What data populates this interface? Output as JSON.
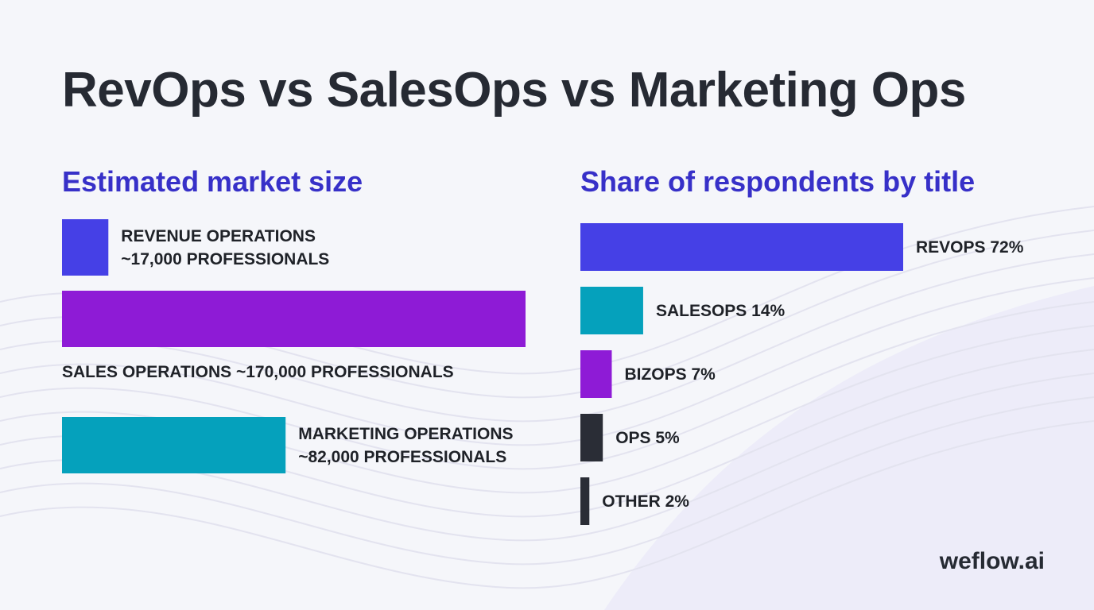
{
  "title": "RevOps vs SalesOps vs Marketing Ops",
  "brand": "weflow.ai",
  "chart_data": [
    {
      "type": "bar",
      "orientation": "horizontal",
      "title": "Estimated market size",
      "unit": "professionals",
      "categories": [
        "REVENUE OPERATIONS",
        "SALES OPERATIONS",
        "MARKETING OPERATIONS"
      ],
      "values": [
        17000,
        170000,
        82000
      ],
      "labels": [
        [
          "REVENUE OPERATIONS",
          "~17,000 PROFESSIONALS"
        ],
        [
          "SALES OPERATIONS ~170,000 PROFESSIONALS"
        ],
        [
          "MARKETING OPERATIONS",
          "~82,000 PROFESSIONALS"
        ]
      ],
      "colors": [
        "#4540e6",
        "#8e1bd6",
        "#05a1bc"
      ],
      "label_positions": [
        "right",
        "below",
        "right"
      ]
    },
    {
      "type": "bar",
      "orientation": "horizontal",
      "title": "Share of respondents by title",
      "unit": "percent",
      "categories": [
        "REVOPS",
        "SALESOPS",
        "BIZOPS",
        "OPS",
        "OTHER"
      ],
      "values": [
        72,
        14,
        7,
        5,
        2
      ],
      "labels": [
        "REVOPS 72%",
        "SALESOPS 14%",
        "BIZOPS 7%",
        "OPS 5%",
        "OTHER 2%"
      ],
      "colors": [
        "#4540e6",
        "#05a1bc",
        "#8e1bd6",
        "#2a2d36",
        "#2a2d36"
      ]
    }
  ]
}
